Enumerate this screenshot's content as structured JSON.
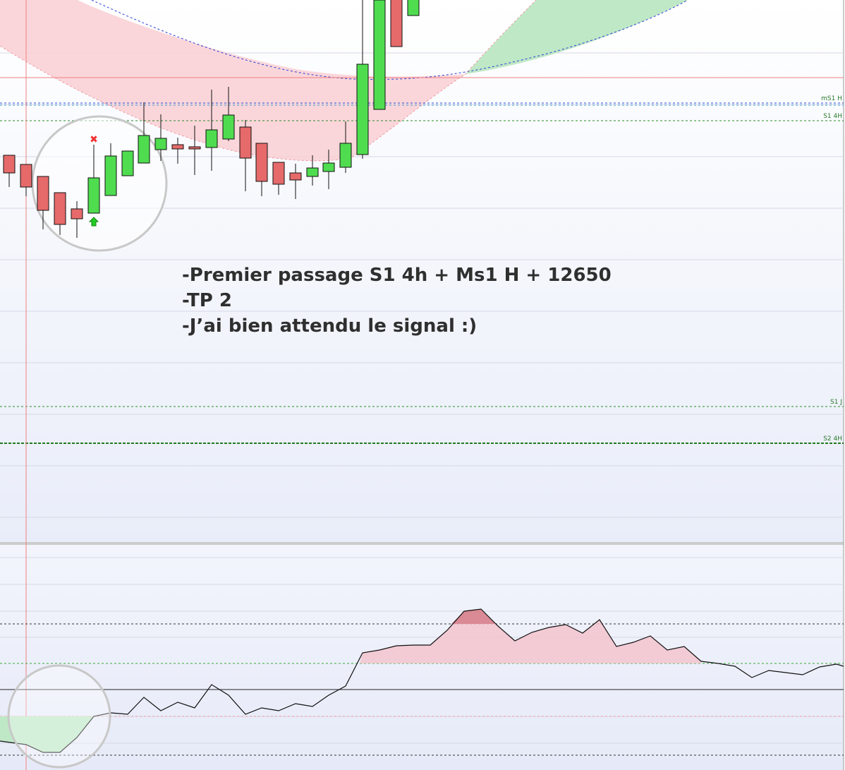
{
  "levels": [
    {
      "label": "mS1 H"
    },
    {
      "label": "S1 4H"
    },
    {
      "label": "S1 J"
    },
    {
      "label": "S2 4H"
    }
  ],
  "annotation": {
    "lines": [
      "-Premier passage S1 4h + Ms1 H + 12650",
      "-TP 2",
      "-J’ai bien attendu le signal :)"
    ]
  }
}
